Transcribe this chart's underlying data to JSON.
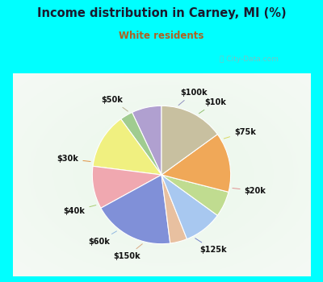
{
  "title": "Income distribution in Carney, MI (%)",
  "subtitle": "White residents",
  "title_color": "#1a1a2e",
  "subtitle_color": "#b06020",
  "bg_top": "#00ffff",
  "labels": [
    "$100k",
    "$10k",
    "$75k",
    "$20k",
    "$125k",
    "$150k",
    "$60k",
    "$40k",
    "$30k",
    "$50k"
  ],
  "sizes": [
    7,
    3,
    13,
    10,
    19,
    4,
    9,
    6,
    14,
    15
  ],
  "colors": [
    "#b0a0d0",
    "#a0cc90",
    "#f0f080",
    "#f0a8b0",
    "#8090d8",
    "#e8c0a0",
    "#a8c8f0",
    "#c0dc90",
    "#f0a858",
    "#c8c0a0"
  ],
  "line_colors": [
    "#9090c0",
    "#90c070",
    "#d8d860",
    "#e09090",
    "#7080c8",
    "#d8a880",
    "#90b8e0",
    "#a8cc70",
    "#e09040",
    "#b8b090"
  ],
  "startangle": 90,
  "wedge_lw": 0.8,
  "wedge_edge": "#ffffff"
}
